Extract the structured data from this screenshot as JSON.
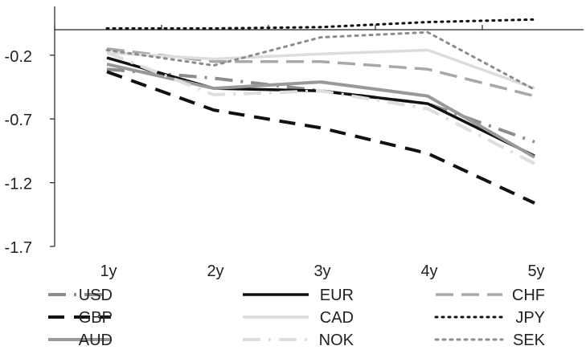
{
  "chart_data": {
    "type": "line",
    "categories": [
      "1y",
      "2y",
      "3y",
      "4y",
      "5y"
    ],
    "ylim": [
      -1.7,
      0.0
    ],
    "yticks": [
      -0.2,
      -0.7,
      -1.2,
      -1.7
    ],
    "ytick_labels": [
      "-0.2",
      "-0.7",
      "-1.2",
      "-1.7"
    ],
    "grid": false,
    "legend_position": "bottom",
    "series": [
      {
        "name": "USD",
        "color": "#8c8c8c",
        "dash": "22 10 3 10",
        "width": 4,
        "values": [
          -0.31,
          -0.38,
          -0.48,
          -0.58,
          -0.88
        ]
      },
      {
        "name": "EUR",
        "color": "#111111",
        "dash": "",
        "width": 3.5,
        "values": [
          -0.22,
          -0.46,
          -0.48,
          -0.58,
          -0.99
        ]
      },
      {
        "name": "CHF",
        "color": "#a8a8a8",
        "dash": "22 10",
        "width": 3.5,
        "values": [
          -0.15,
          -0.25,
          -0.25,
          -0.31,
          -0.52
        ]
      },
      {
        "name": "GBP",
        "color": "#111111",
        "dash": "20 12",
        "width": 4,
        "values": [
          -0.33,
          -0.63,
          -0.77,
          -0.97,
          -1.36
        ]
      },
      {
        "name": "CAD",
        "color": "#dcdcdc",
        "dash": "",
        "width": 3.5,
        "values": [
          -0.18,
          -0.23,
          -0.19,
          -0.16,
          -0.46
        ]
      },
      {
        "name": "JPY",
        "color": "#111111",
        "dash": "2 6",
        "width": 3,
        "values": [
          0.01,
          0.01,
          0.02,
          0.06,
          0.08
        ]
      },
      {
        "name": "AUD",
        "color": "#999999",
        "dash": "",
        "width": 4,
        "values": [
          -0.27,
          -0.46,
          -0.41,
          -0.52,
          -1.0
        ]
      },
      {
        "name": "NOK",
        "color": "#dedede",
        "dash": "22 10 3 10",
        "width": 4,
        "values": [
          -0.18,
          -0.51,
          -0.48,
          -0.62,
          -1.05
        ]
      },
      {
        "name": "SEK",
        "color": "#8c8c8c",
        "dash": "3 6",
        "width": 3,
        "values": [
          -0.16,
          -0.28,
          -0.06,
          -0.02,
          -0.47
        ]
      }
    ]
  }
}
